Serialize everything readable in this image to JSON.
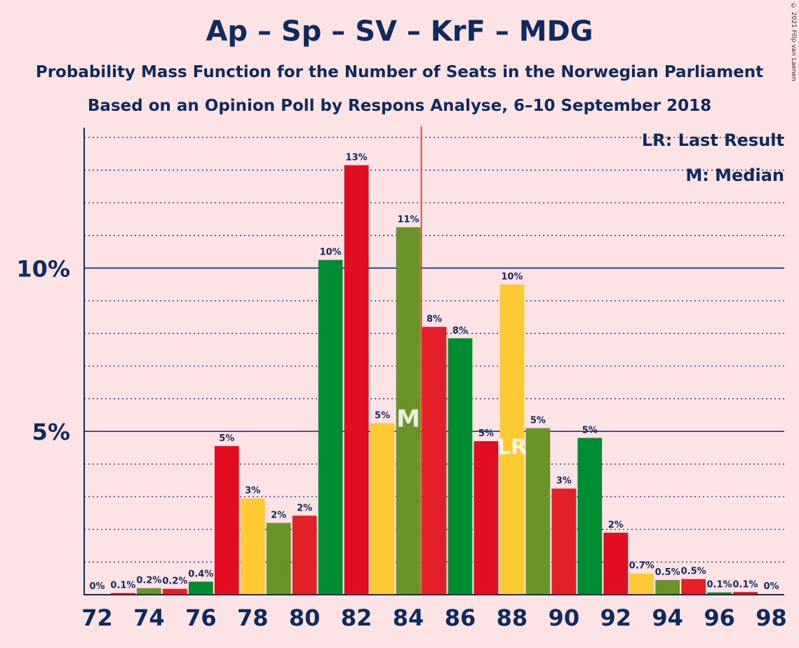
{
  "chart_data": {
    "type": "bar",
    "title": "Ap – Sp – SV – KrF – MDG",
    "subtitle": "Probability Mass Function for the Number of Seats in the Norwegian Parliament",
    "subtitle2": "Based on an Opinion Poll by Respons Analyse, 6–10 September 2018",
    "copyright": "© 2021 Filip van Laenen",
    "xlabel": "",
    "ylabel": "",
    "x_ticks": [
      "72",
      "74",
      "76",
      "78",
      "80",
      "82",
      "84",
      "86",
      "88",
      "90",
      "92",
      "94",
      "96",
      "98"
    ],
    "y_ticks": [
      {
        "value": 5,
        "label": "5%"
      },
      {
        "value": 10,
        "label": "10%"
      }
    ],
    "ylim": [
      0,
      14.3
    ],
    "xlim": [
      71.5,
      98.5
    ],
    "grid": true,
    "legend_position": "top-right",
    "legend": [
      "LR: Last Result",
      "M: Median"
    ],
    "majority_line": 84.5,
    "median": {
      "x": 84,
      "label": "M"
    },
    "last_result": {
      "x": 88,
      "label": "LR"
    },
    "colors": [
      "#e30d21",
      "#ffc933",
      "#6a9427",
      "#e32028",
      "#008c32"
    ],
    "bars": [
      {
        "x": 72,
        "value": 0,
        "label": "0%",
        "color_index": 4
      },
      {
        "x": 73,
        "value": 0.05,
        "label": "0.1%",
        "color_index": 0
      },
      {
        "x": 74,
        "value": 0.2,
        "label": "0.2%",
        "color_index": 2
      },
      {
        "x": 75,
        "value": 0.18,
        "label": "0.2%",
        "color_index": 3
      },
      {
        "x": 76,
        "value": 0.4,
        "label": "0.4%",
        "color_index": 4
      },
      {
        "x": 77,
        "value": 4.55,
        "label": "5%",
        "color_index": 0
      },
      {
        "x": 78,
        "value": 2.95,
        "label": "3%",
        "color_index": 1
      },
      {
        "x": 79,
        "value": 2.2,
        "label": "2%",
        "color_index": 2
      },
      {
        "x": 80,
        "value": 2.42,
        "label": "2%",
        "color_index": 3
      },
      {
        "x": 81,
        "value": 10.25,
        "label": "10%",
        "color_index": 4
      },
      {
        "x": 82,
        "value": 13.15,
        "label": "13%",
        "color_index": 0
      },
      {
        "x": 83,
        "value": 5.25,
        "label": "5%",
        "color_index": 1
      },
      {
        "x": 84,
        "value": 11.25,
        "label": "11%",
        "color_index": 2
      },
      {
        "x": 85,
        "value": 8.2,
        "label": "8%",
        "color_index": 3
      },
      {
        "x": 86,
        "value": 7.85,
        "label": "8%",
        "color_index": 4
      },
      {
        "x": 87,
        "value": 4.7,
        "label": "5%",
        "color_index": 0
      },
      {
        "x": 88,
        "value": 9.5,
        "label": "10%",
        "color_index": 1
      },
      {
        "x": 89,
        "value": 5.1,
        "label": "5%",
        "color_index": 2
      },
      {
        "x": 90,
        "value": 3.25,
        "label": "3%",
        "color_index": 3
      },
      {
        "x": 91,
        "value": 4.8,
        "label": "5%",
        "color_index": 4
      },
      {
        "x": 92,
        "value": 1.9,
        "label": "2%",
        "color_index": 0
      },
      {
        "x": 93,
        "value": 0.65,
        "label": "0.7%",
        "color_index": 1
      },
      {
        "x": 94,
        "value": 0.45,
        "label": "0.5%",
        "color_index": 2
      },
      {
        "x": 95,
        "value": 0.48,
        "label": "0.5%",
        "color_index": 3
      },
      {
        "x": 96,
        "value": 0.07,
        "label": "0.1%",
        "color_index": 4
      },
      {
        "x": 97,
        "value": 0.08,
        "label": "0.1%",
        "color_index": 0
      },
      {
        "x": 98,
        "value": 0,
        "label": "0%",
        "color_index": 4
      }
    ]
  }
}
